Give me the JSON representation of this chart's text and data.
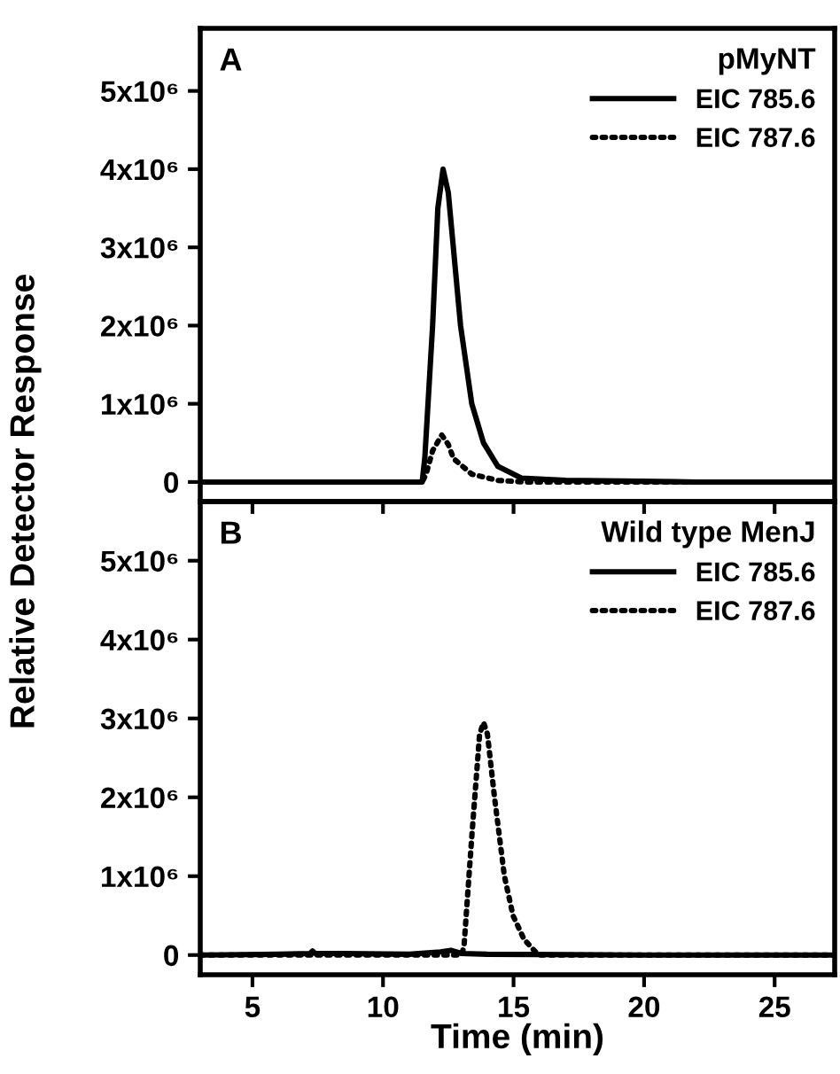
{
  "chart_data": [
    {
      "type": "line",
      "ylabel": "Relative Detector Response",
      "legend_title": "pMyNT",
      "annotations": [
        "A"
      ],
      "legend": "top right",
      "tick_labels": "y",
      "grid": false,
      "marker": "none",
      "xlim": [
        3,
        27.3
      ],
      "xticks": [
        {
          "value": 5,
          "label": null
        },
        {
          "value": 10,
          "label": null
        },
        {
          "value": 15,
          "label": null
        },
        {
          "value": 20,
          "label": null
        },
        {
          "value": 25,
          "label": null
        }
      ],
      "ylim": [
        -250000,
        5800000
      ],
      "yticks": [
        {
          "value": 0,
          "label": "0"
        },
        {
          "value": 1000000,
          "label": "1x10⁶"
        },
        {
          "value": 2000000,
          "label": "2x10⁶"
        },
        {
          "value": 3000000,
          "label": "3x10⁶"
        },
        {
          "value": 4000000,
          "label": "4x10⁶"
        },
        {
          "value": 5000000,
          "label": "5x10⁶"
        }
      ],
      "series": [
        {
          "name": "EIC 785.6",
          "color": "#000000",
          "line_style": "solid",
          "x": [
            3,
            8,
            11.5,
            11.6,
            11.9,
            12.1,
            12.3,
            12.5,
            12.97,
            13.4,
            13.85,
            14.4,
            15.3,
            17,
            22,
            27.3
          ],
          "values": [
            0,
            0,
            0,
            300000,
            2000000,
            3500000,
            4000000,
            3700000,
            2000000,
            1000000,
            500000,
            200000,
            50000,
            20000,
            0,
            0
          ]
        },
        {
          "name": "EIC 787.6",
          "color": "#000000",
          "line_style": "dotted",
          "x": [
            3,
            11.5,
            11.65,
            11.9,
            12.25,
            12.5,
            12.7,
            13.4,
            14.4,
            15.5,
            27.3
          ],
          "values": [
            0,
            0,
            100000,
            400000,
            600000,
            480000,
            300000,
            100000,
            20000,
            0,
            0
          ]
        }
      ]
    },
    {
      "type": "line",
      "xlabel": "Time (min)",
      "legend_title": "Wild type MenJ",
      "annotations": [
        "B"
      ],
      "legend": "top right",
      "grid": false,
      "marker": "none",
      "xlim": [
        3,
        27.3
      ],
      "xticks": [
        5,
        10,
        15,
        20,
        25
      ],
      "ylim": [
        -250000,
        5750000
      ],
      "yticks": [
        {
          "value": 0,
          "label": "0"
        },
        {
          "value": 1000000,
          "label": "1x10⁶"
        },
        {
          "value": 2000000,
          "label": "2x10⁶"
        },
        {
          "value": 3000000,
          "label": "3x10⁶"
        },
        {
          "value": 4000000,
          "label": "4x10⁶"
        },
        {
          "value": 5000000,
          "label": "5x10⁶"
        }
      ],
      "series": [
        {
          "name": "EIC 785.6",
          "color": "#000000",
          "line_style": "solid",
          "x": [
            3,
            6,
            7.2,
            7.3,
            7.4,
            8.5,
            11,
            12.2,
            12.6,
            13,
            14,
            20,
            27.3
          ],
          "values": [
            0,
            10000,
            20000,
            50000,
            20000,
            20000,
            10000,
            40000,
            60000,
            20000,
            10000,
            0,
            0
          ]
        },
        {
          "name": "EIC 787.6",
          "color": "#000000",
          "line_style": "dotted",
          "x": [
            3,
            13,
            13.1,
            13.4,
            13.7,
            13.85,
            14.0,
            14.27,
            14.65,
            14.98,
            15.4,
            15.95,
            27.3
          ],
          "values": [
            0,
            0,
            100000,
            1500000,
            2800000,
            2950000,
            2800000,
            2000000,
            1000000,
            500000,
            200000,
            0,
            0
          ]
        }
      ]
    }
  ]
}
